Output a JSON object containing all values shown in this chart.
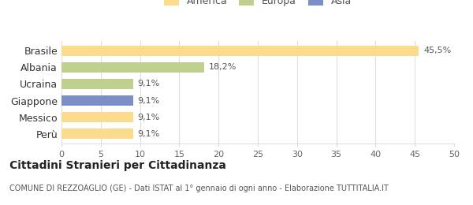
{
  "categories": [
    "Brasile",
    "Albania",
    "Ucraina",
    "Giappone",
    "Messico",
    "Perù"
  ],
  "values": [
    45.5,
    18.2,
    9.1,
    9.1,
    9.1,
    9.1
  ],
  "labels": [
    "45,5%",
    "18,2%",
    "9,1%",
    "9,1%",
    "9,1%",
    "9,1%"
  ],
  "bar_colors": [
    "#FADC8C",
    "#BFCF8E",
    "#BFCF8E",
    "#7B8FC4",
    "#FADC8C",
    "#FADC8C"
  ],
  "legend_items": [
    {
      "label": "America",
      "color": "#FADC8C"
    },
    {
      "label": "Europa",
      "color": "#BFCF8E"
    },
    {
      "label": "Asia",
      "color": "#7B8FC4"
    }
  ],
  "xlim": [
    0,
    50
  ],
  "xticks": [
    0,
    5,
    10,
    15,
    20,
    25,
    30,
    35,
    40,
    45,
    50
  ],
  "title": "Cittadini Stranieri per Cittadinanza",
  "subtitle": "COMUNE DI REZZOAGLIO (GE) - Dati ISTAT al 1° gennaio di ogni anno - Elaborazione TUTTITALIA.IT",
  "background_color": "#ffffff",
  "grid_color": "#dddddd"
}
